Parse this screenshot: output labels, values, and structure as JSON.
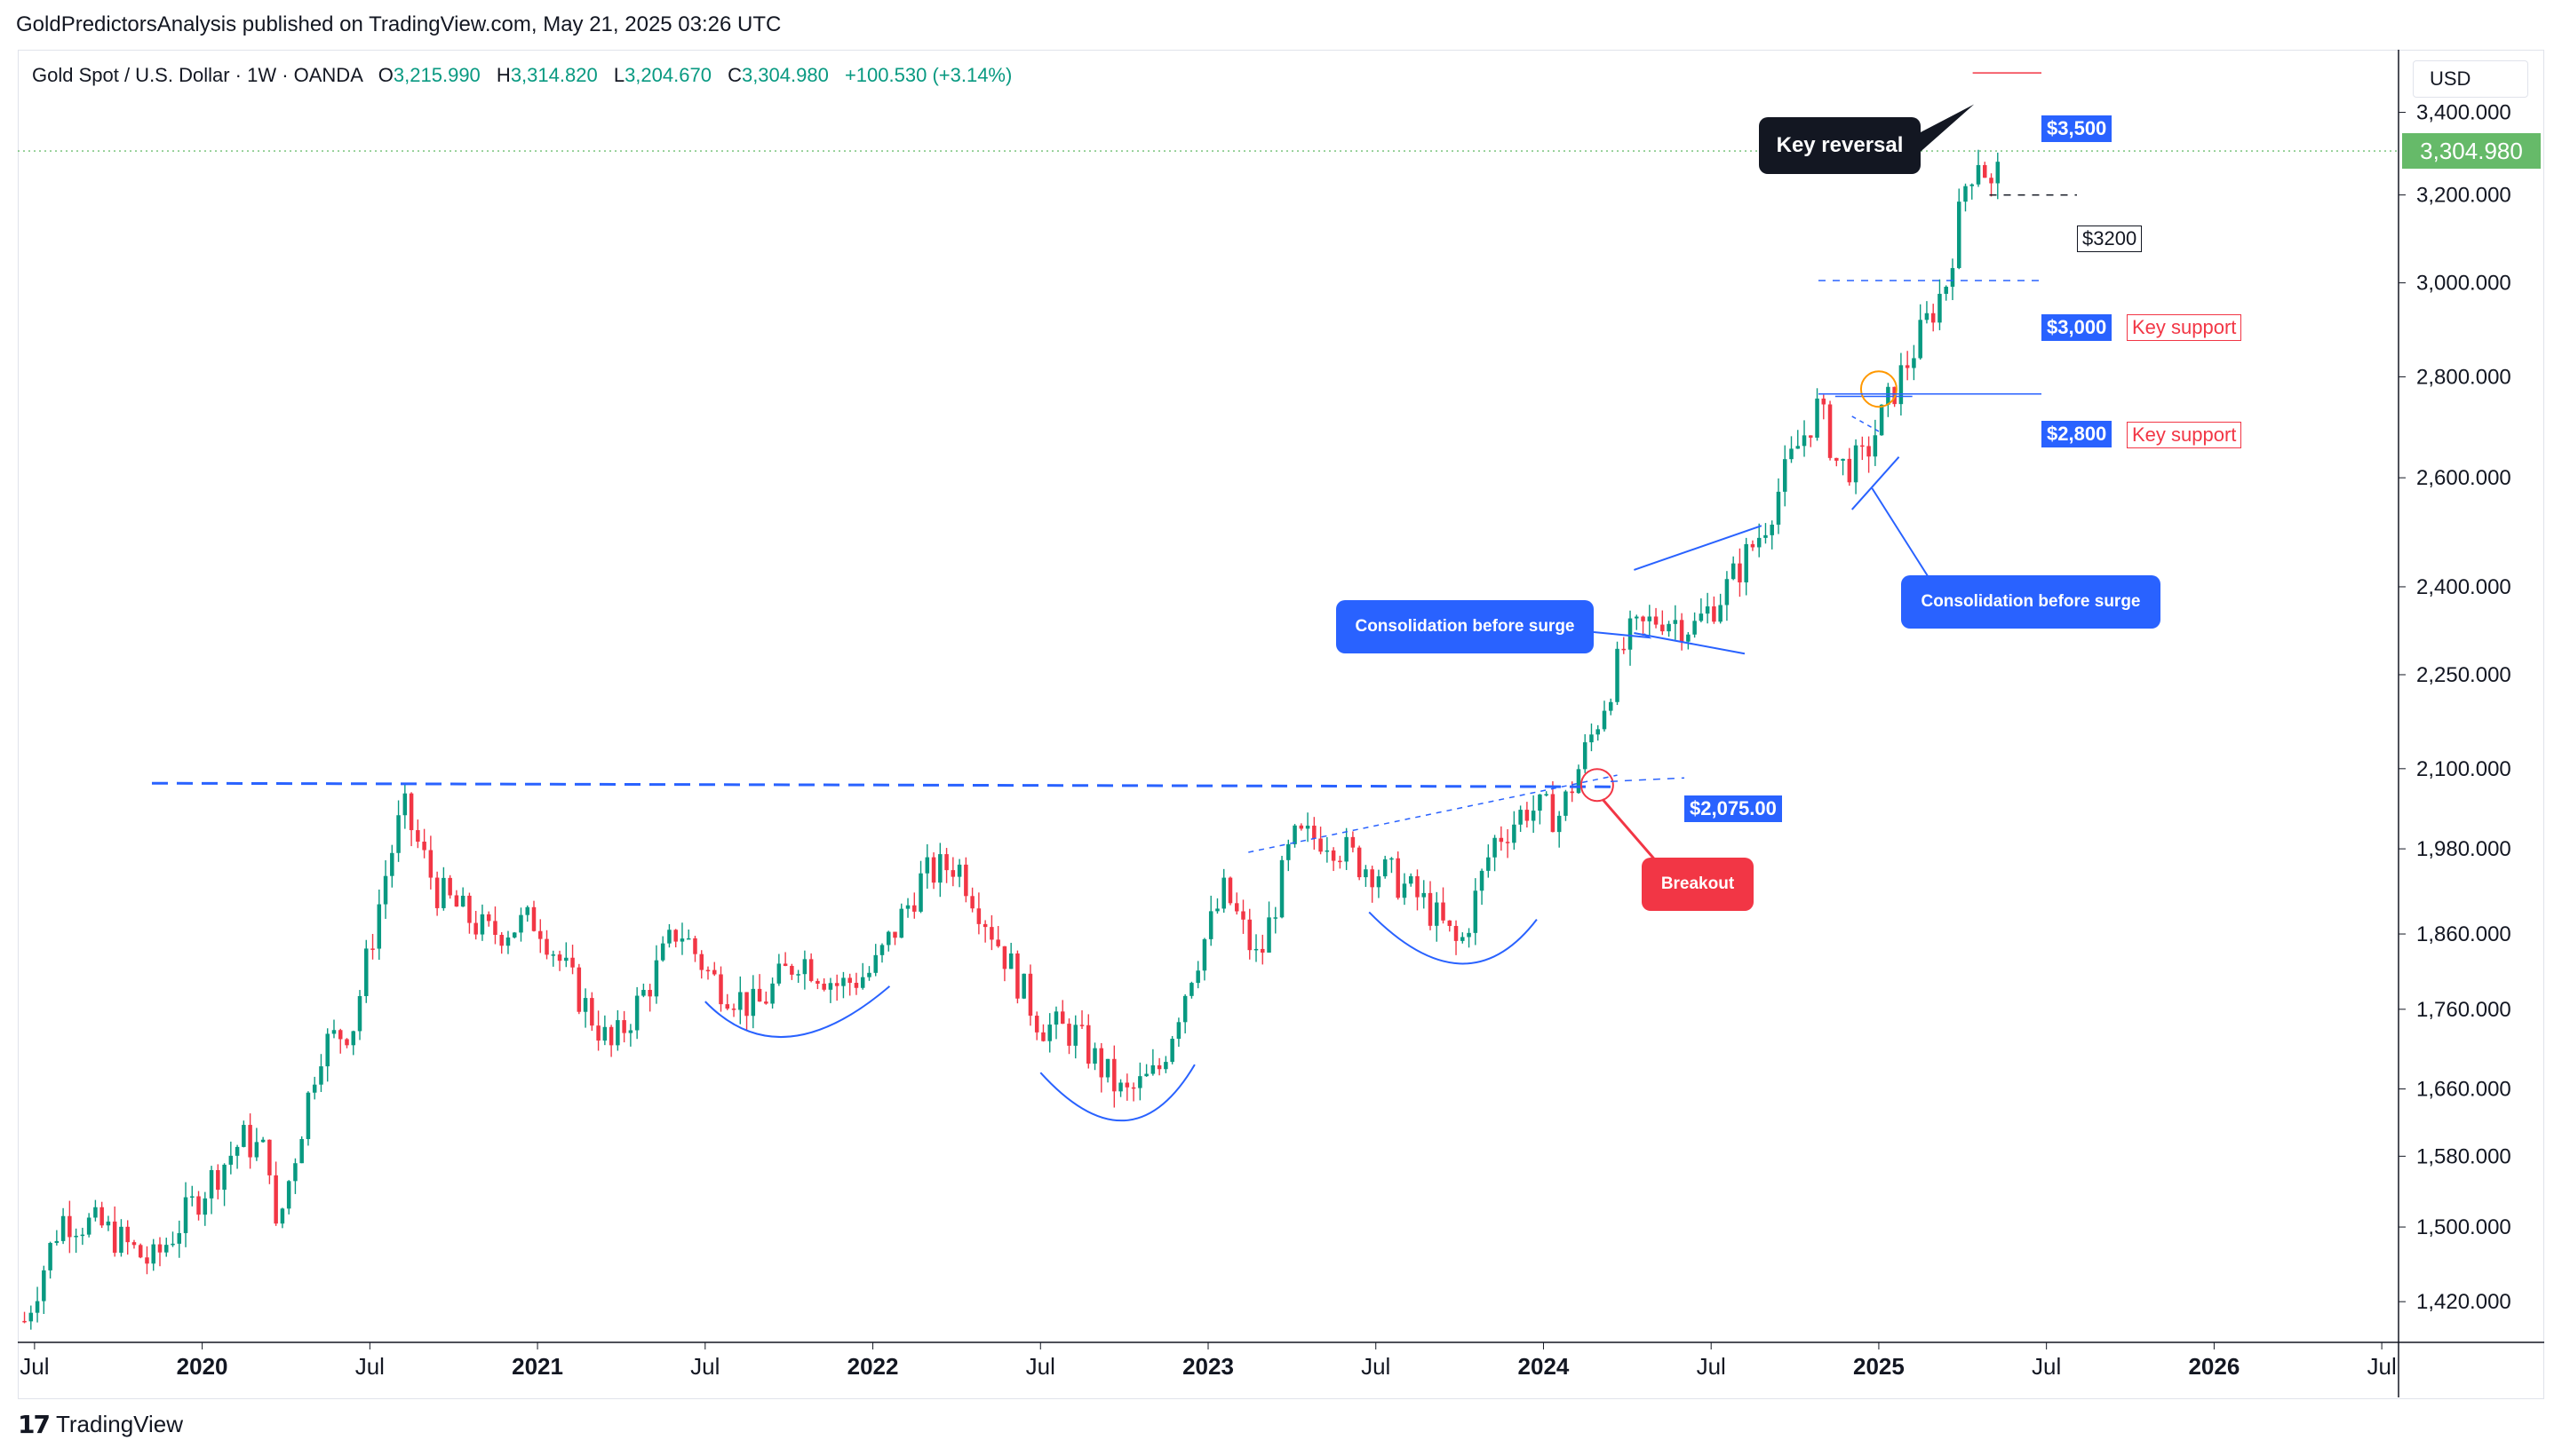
{
  "caption": "GoldPredictorsAnalysis published on TradingView.com, May 21, 2025 03:26 UTC",
  "legend": {
    "symbol": "Gold Spot / U.S. Dollar · 1W · OANDA",
    "open_label": "O",
    "open": "3,215.990",
    "high_label": "H",
    "high": "3,314.820",
    "low_label": "L",
    "low": "3,204.670",
    "close_label": "C",
    "close": "3,304.980",
    "change": "+100.530 (+3.14%)"
  },
  "currency": "USD",
  "last_price": "3,304.980",
  "footer": {
    "brand": "TradingView",
    "icon": "tradingview-logo-icon"
  },
  "colors": {
    "up": "#089981",
    "down": "#f23645",
    "annotation_blue": "#2962ff",
    "breakout_red": "#f23645"
  },
  "chart_data": {
    "type": "candlestick",
    "timeframe": "1W",
    "y_scale": "log",
    "ylim": [
      1380,
      3560
    ],
    "y_ticks": [
      {
        "value": 3400,
        "label": "3,400.000"
      },
      {
        "value": 3200,
        "label": "3,200.000"
      },
      {
        "value": 3000,
        "label": "3,000.000"
      },
      {
        "value": 2800,
        "label": "2,800.000"
      },
      {
        "value": 2600,
        "label": "2,600.000"
      },
      {
        "value": 2400,
        "label": "2,400.000"
      },
      {
        "value": 2250,
        "label": "2,250.000"
      },
      {
        "value": 2100,
        "label": "2,100.000"
      },
      {
        "value": 1980,
        "label": "1,980.000"
      },
      {
        "value": 1860,
        "label": "1,860.000"
      },
      {
        "value": 1760,
        "label": "1,760.000"
      },
      {
        "value": 1660,
        "label": "1,660.000"
      },
      {
        "value": 1580,
        "label": "1,580.000"
      },
      {
        "value": 1500,
        "label": "1,500.000"
      },
      {
        "value": 1420,
        "label": "1,420.000"
      }
    ],
    "x_ticks": [
      {
        "t": 2019.5,
        "label": "Jul",
        "bold": false
      },
      {
        "t": 2020.0,
        "label": "2020",
        "bold": true
      },
      {
        "t": 2020.5,
        "label": "Jul",
        "bold": false
      },
      {
        "t": 2021.0,
        "label": "2021",
        "bold": true
      },
      {
        "t": 2021.5,
        "label": "Jul",
        "bold": false
      },
      {
        "t": 2022.0,
        "label": "2022",
        "bold": true
      },
      {
        "t": 2022.5,
        "label": "Jul",
        "bold": false
      },
      {
        "t": 2023.0,
        "label": "2023",
        "bold": true
      },
      {
        "t": 2023.5,
        "label": "Jul",
        "bold": false
      },
      {
        "t": 2024.0,
        "label": "2024",
        "bold": true
      },
      {
        "t": 2024.5,
        "label": "Jul",
        "bold": false
      },
      {
        "t": 2025.0,
        "label": "2025",
        "bold": true
      },
      {
        "t": 2025.5,
        "label": "Jul",
        "bold": false
      },
      {
        "t": 2026.0,
        "label": "2026",
        "bold": true
      },
      {
        "t": 2026.5,
        "label": "Jul",
        "bold": false
      }
    ],
    "xlim": [
      2019.45,
      2026.55
    ],
    "close_anchors": [
      [
        2019.47,
        1400
      ],
      [
        2019.58,
        1510
      ],
      [
        2019.7,
        1500
      ],
      [
        2019.85,
        1460
      ],
      [
        2020.0,
        1540
      ],
      [
        2020.12,
        1600
      ],
      [
        2020.2,
        1580
      ],
      [
        2020.22,
        1490
      ],
      [
        2020.35,
        1710
      ],
      [
        2020.45,
        1740
      ],
      [
        2020.55,
        1950
      ],
      [
        2020.6,
        2040
      ],
      [
        2020.7,
        1920
      ],
      [
        2020.85,
        1860
      ],
      [
        2021.0,
        1880
      ],
      [
        2021.12,
        1780
      ],
      [
        2021.22,
        1710
      ],
      [
        2021.33,
        1790
      ],
      [
        2021.42,
        1870
      ],
      [
        2021.52,
        1800
      ],
      [
        2021.65,
        1760
      ],
      [
        2021.78,
        1830
      ],
      [
        2021.9,
        1790
      ],
      [
        2022.0,
        1810
      ],
      [
        2022.15,
        1940
      ],
      [
        2022.25,
        1960
      ],
      [
        2022.35,
        1870
      ],
      [
        2022.5,
        1740
      ],
      [
        2022.6,
        1730
      ],
      [
        2022.75,
        1650
      ],
      [
        2022.85,
        1680
      ],
      [
        2022.95,
        1810
      ],
      [
        2023.05,
        1920
      ],
      [
        2023.15,
        1820
      ],
      [
        2023.25,
        1990
      ],
      [
        2023.35,
        2000
      ],
      [
        2023.45,
        1960
      ],
      [
        2023.55,
        1940
      ],
      [
        2023.65,
        1900
      ],
      [
        2023.75,
        1840
      ],
      [
        2023.85,
        1990
      ],
      [
        2023.95,
        2040
      ],
      [
        2024.05,
        2030
      ],
      [
        2024.15,
        2160
      ],
      [
        2024.25,
        2310
      ],
      [
        2024.35,
        2350
      ],
      [
        2024.45,
        2330
      ],
      [
        2024.55,
        2400
      ],
      [
        2024.65,
        2500
      ],
      [
        2024.75,
        2650
      ],
      [
        2024.82,
        2740
      ],
      [
        2024.88,
        2620
      ],
      [
        2024.95,
        2630
      ],
      [
        2025.05,
        2780
      ],
      [
        2025.12,
        2880
      ],
      [
        2025.2,
        3000
      ],
      [
        2025.26,
        3230
      ],
      [
        2025.3,
        3300
      ],
      [
        2025.34,
        3200
      ],
      [
        2025.37,
        3305
      ]
    ],
    "horizontal_levels": [
      {
        "value": 3500,
        "label": "$3,500",
        "color": "#f23645"
      },
      {
        "value": 3200,
        "label": "$3200",
        "style": "dashed-black"
      },
      {
        "value": 3000,
        "label": "$3,000",
        "note": "Key support",
        "style": "dashed-blue"
      },
      {
        "value": 2800,
        "label": "$2,800",
        "note": "Key support",
        "style": "solid-blue"
      },
      {
        "value": 2075,
        "label": "$2,075.00",
        "style": "dashed-blue"
      }
    ],
    "annotations": [
      {
        "text": "Key reversal",
        "kind": "callout-dark"
      },
      {
        "text": "Consolidation before surge",
        "kind": "callout-blue",
        "at": 2024.3
      },
      {
        "text": "Consolidation before surge",
        "kind": "callout-blue",
        "at": 2024.95
      },
      {
        "text": "Breakout",
        "kind": "callout-red",
        "at": 2024.15
      }
    ]
  }
}
